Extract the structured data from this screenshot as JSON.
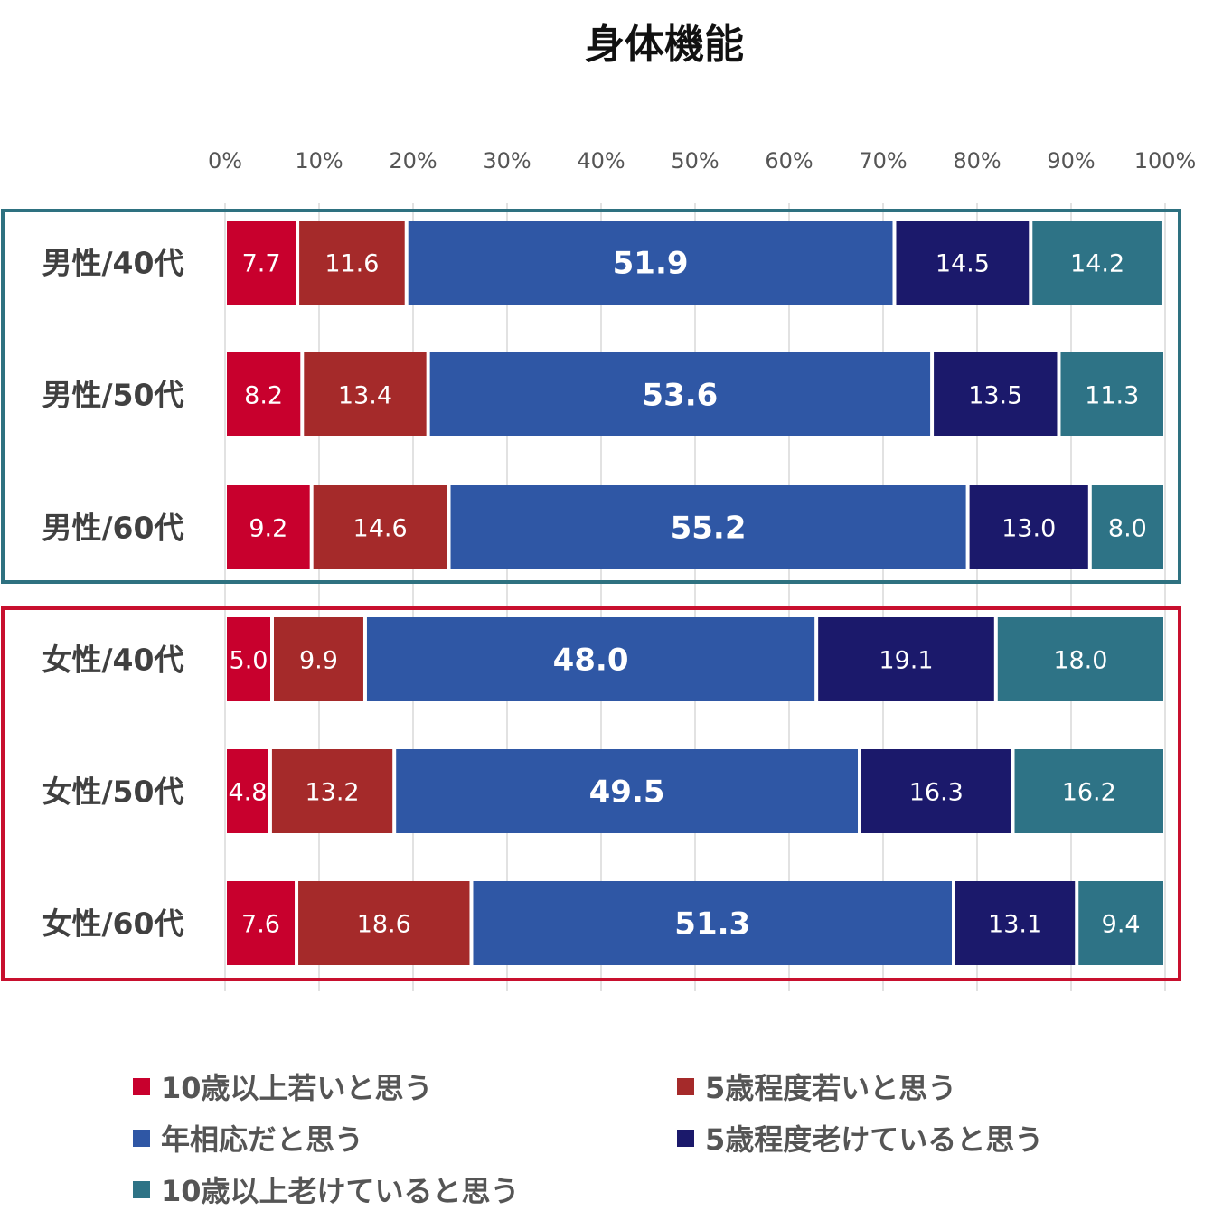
{
  "chart_data": {
    "type": "bar",
    "orientation": "horizontal",
    "stacked": true,
    "title": "身体機能",
    "xlabel": "",
    "ylabel": "",
    "xlim": [
      0,
      100
    ],
    "x_ticks": [
      "0%",
      "10%",
      "20%",
      "30%",
      "40%",
      "50%",
      "60%",
      "70%",
      "80%",
      "90%",
      "100%"
    ],
    "grid": true,
    "legend_position": "bottom",
    "categories": [
      "男性/40代",
      "男性/50代",
      "男性/60代",
      "女性/40代",
      "女性/50代",
      "女性/60代"
    ],
    "groups": [
      {
        "name": "男性",
        "members": [
          0,
          1,
          2
        ],
        "color": "#2E7180"
      },
      {
        "name": "女性",
        "members": [
          3,
          4,
          5
        ],
        "color": "#C8102E"
      }
    ],
    "series": [
      {
        "name": "10歳以上若いと思う",
        "color": "#C8002D",
        "values": [
          7.7,
          8.2,
          9.2,
          5.0,
          4.8,
          7.6
        ],
        "labels": [
          "7.7",
          "8.2",
          "9.2",
          "5.0",
          "4.8",
          "7.6"
        ]
      },
      {
        "name": "5歳程度若いと思う",
        "color": "#A52A2A",
        "values": [
          11.6,
          13.4,
          14.6,
          9.9,
          13.2,
          18.6
        ],
        "labels": [
          "11.6",
          "13.4",
          "14.6",
          "9.9",
          "13.2",
          "18.6"
        ]
      },
      {
        "name": "年相応だと思う",
        "color": "#2F57A5",
        "bold_labels": true,
        "values": [
          51.9,
          53.6,
          55.2,
          48.0,
          49.5,
          51.3
        ],
        "labels": [
          "51.9",
          "53.6",
          "55.2",
          "48.0",
          "49.5",
          "51.3"
        ]
      },
      {
        "name": "5歳程度老けていると思う",
        "color": "#1B196B",
        "values": [
          14.5,
          13.5,
          13.0,
          19.1,
          16.3,
          13.1
        ],
        "labels": [
          "14.5",
          "13.5",
          "13.0",
          "19.1",
          "16.3",
          "13.1"
        ]
      },
      {
        "name": "10歳以上老けていると思う",
        "color": "#2E7386",
        "values": [
          14.2,
          11.3,
          8.0,
          18.0,
          16.2,
          9.4
        ],
        "labels": [
          "14.2",
          "11.3",
          "8.0",
          "18.0",
          "16.2",
          "9.4"
        ]
      }
    ]
  }
}
